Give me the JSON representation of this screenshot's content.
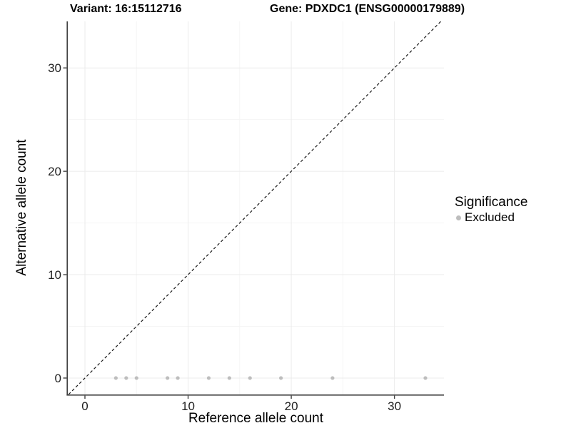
{
  "chart_data": {
    "type": "scatter",
    "title_left": "Variant: 16:15112716",
    "title_right": "Gene: PDXDC1 (ENSG00000179889)",
    "xlabel": "Reference allele count",
    "ylabel": "Alternative allele count",
    "xlim": [
      -1.66,
      34.8
    ],
    "ylim": [
      -1.59,
      34.5
    ],
    "x_ticks": [
      0,
      10,
      20,
      30
    ],
    "y_ticks": [
      0,
      10,
      20,
      30
    ],
    "x_minor_ticks": [
      5,
      15,
      25
    ],
    "y_minor_ticks": [
      5,
      15,
      25
    ],
    "grid": true,
    "identity_line": {
      "slope": 1,
      "intercept": 0,
      "style": "dashed",
      "color": "#1a1a1a"
    },
    "series": [
      {
        "name": "Excluded",
        "color": "#bdbdbd",
        "points": [
          [
            3,
            0
          ],
          [
            4,
            0
          ],
          [
            5,
            0
          ],
          [
            8,
            0
          ],
          [
            9,
            0
          ],
          [
            12,
            0
          ],
          [
            14,
            0
          ],
          [
            16,
            0
          ],
          [
            19,
            0
          ],
          [
            24,
            0
          ],
          [
            33,
            0
          ]
        ]
      }
    ],
    "legend": {
      "position": "right",
      "title": "Significance",
      "entries": [
        {
          "label": "Excluded",
          "color": "#bdbdbd"
        }
      ]
    }
  },
  "colors": {
    "background": "#ffffff",
    "axis_line": "#404040",
    "tick_mark": "#404040",
    "tick_label": "#1f1f1f",
    "grid_major": "#ebebeb",
    "grid_minor": "#f5f5f5",
    "point": "#bdbdbd",
    "dashed_line": "#1a1a1a"
  }
}
